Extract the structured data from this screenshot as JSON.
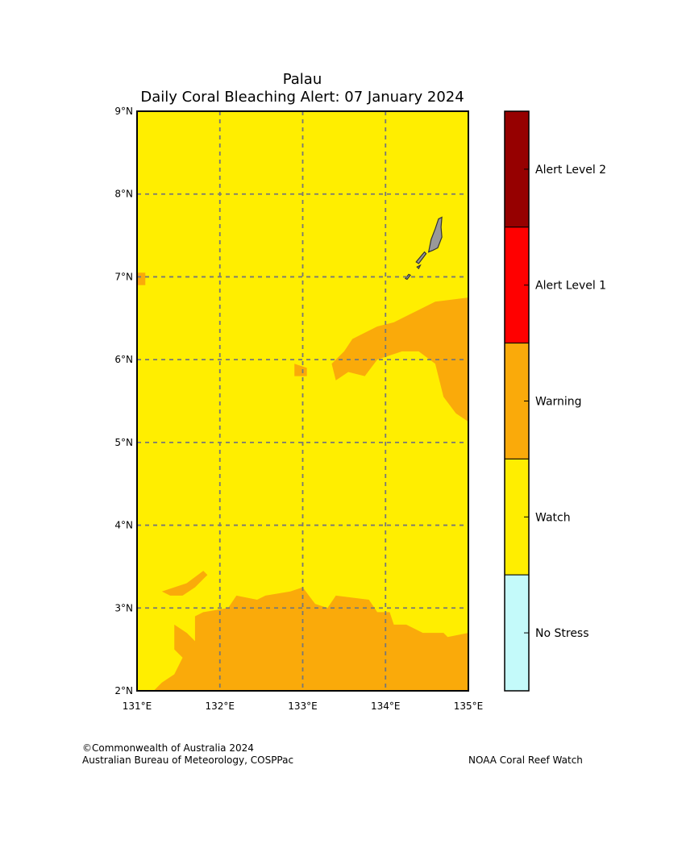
{
  "title_line1": "Palau",
  "title_line2": "Daily Coral Bleaching Alert: 07 January 2024",
  "colors": {
    "no_stress": "#c4fafa",
    "watch": "#ffee00",
    "warning": "#faaa0a",
    "alert1": "#ff0000",
    "alert2": "#960000",
    "land": "#999999",
    "grid": "#777777"
  },
  "chart_data": {
    "type": "heatmap",
    "xlim": [
      131,
      135
    ],
    "ylim": [
      2,
      9
    ],
    "xticks": [
      "131°E",
      "132°E",
      "133°E",
      "134°E",
      "135°E"
    ],
    "yticks": [
      "2°N",
      "3°N",
      "4°N",
      "5°N",
      "6°N",
      "7°N",
      "8°N",
      "9°N"
    ],
    "grid": true,
    "background_category": "Watch",
    "categories": [
      "No Stress",
      "Watch",
      "Warning",
      "Alert Level 1",
      "Alert Level 2"
    ],
    "warning_regions": [
      [
        [
          135.0,
          6.75
        ],
        [
          134.6,
          6.7
        ],
        [
          134.4,
          6.6
        ],
        [
          134.1,
          6.45
        ],
        [
          133.9,
          6.4
        ],
        [
          133.6,
          6.25
        ],
        [
          133.5,
          6.1
        ],
        [
          133.35,
          5.95
        ],
        [
          133.4,
          5.75
        ],
        [
          133.55,
          5.85
        ],
        [
          133.75,
          5.8
        ],
        [
          133.9,
          6.0
        ],
        [
          134.2,
          6.1
        ],
        [
          134.4,
          6.1
        ],
        [
          134.6,
          5.95
        ],
        [
          134.7,
          5.55
        ],
        [
          134.85,
          5.35
        ],
        [
          135.0,
          5.25
        ]
      ],
      [
        [
          132.9,
          5.95
        ],
        [
          133.05,
          5.9
        ],
        [
          133.05,
          5.8
        ],
        [
          132.9,
          5.8
        ]
      ],
      [
        [
          131.0,
          7.05
        ],
        [
          131.1,
          7.05
        ],
        [
          131.1,
          6.9
        ],
        [
          131.0,
          6.9
        ]
      ],
      [
        [
          131.3,
          3.2
        ],
        [
          131.6,
          3.3
        ],
        [
          131.8,
          3.45
        ],
        [
          131.85,
          3.4
        ],
        [
          131.7,
          3.25
        ],
        [
          131.55,
          3.15
        ],
        [
          131.4,
          3.15
        ]
      ],
      [
        [
          131.2,
          2.0
        ],
        [
          131.3,
          2.1
        ],
        [
          131.45,
          2.2
        ],
        [
          131.55,
          2.4
        ],
        [
          131.45,
          2.5
        ],
        [
          131.45,
          2.8
        ],
        [
          131.6,
          2.7
        ],
        [
          131.7,
          2.6
        ],
        [
          131.7,
          2.9
        ],
        [
          131.8,
          2.95
        ],
        [
          132.1,
          3.0
        ],
        [
          132.2,
          3.15
        ],
        [
          132.45,
          3.1
        ],
        [
          132.55,
          3.15
        ],
        [
          132.85,
          3.2
        ],
        [
          133.0,
          3.25
        ],
        [
          133.15,
          3.05
        ],
        [
          133.3,
          3.0
        ],
        [
          133.4,
          3.15
        ],
        [
          133.8,
          3.1
        ],
        [
          133.9,
          2.95
        ],
        [
          134.05,
          2.95
        ],
        [
          134.1,
          2.8
        ],
        [
          134.25,
          2.8
        ],
        [
          134.45,
          2.7
        ],
        [
          134.7,
          2.7
        ],
        [
          134.75,
          2.65
        ],
        [
          135.0,
          2.7
        ],
        [
          135.0,
          2.0
        ]
      ]
    ],
    "land": [
      [
        [
          134.52,
          7.3
        ],
        [
          134.55,
          7.45
        ],
        [
          134.6,
          7.58
        ],
        [
          134.64,
          7.7
        ],
        [
          134.68,
          7.72
        ],
        [
          134.67,
          7.6
        ],
        [
          134.68,
          7.48
        ],
        [
          134.63,
          7.35
        ],
        [
          134.57,
          7.32
        ]
      ],
      [
        [
          134.37,
          7.18
        ],
        [
          134.47,
          7.3
        ],
        [
          134.49,
          7.28
        ],
        [
          134.4,
          7.16
        ]
      ],
      [
        [
          134.38,
          7.12
        ],
        [
          134.42,
          7.14
        ],
        [
          134.4,
          7.1
        ]
      ],
      [
        [
          134.24,
          6.98
        ],
        [
          134.28,
          7.03
        ],
        [
          134.3,
          7.02
        ],
        [
          134.26,
          6.97
        ]
      ]
    ]
  },
  "colorbar": {
    "levels": [
      {
        "label": "Alert Level 2",
        "color": "#960000"
      },
      {
        "label": "Alert Level 1",
        "color": "#ff0000"
      },
      {
        "label": "Warning",
        "color": "#faaa0a"
      },
      {
        "label": "Watch",
        "color": "#ffee00"
      },
      {
        "label": "No Stress",
        "color": "#c4fafa"
      }
    ]
  },
  "footer": {
    "copyright": "©Commonwealth of Australia 2024",
    "agency": "Australian Bureau of Meteorology, COSPPac",
    "partner": "NOAA Coral Reef Watch"
  }
}
